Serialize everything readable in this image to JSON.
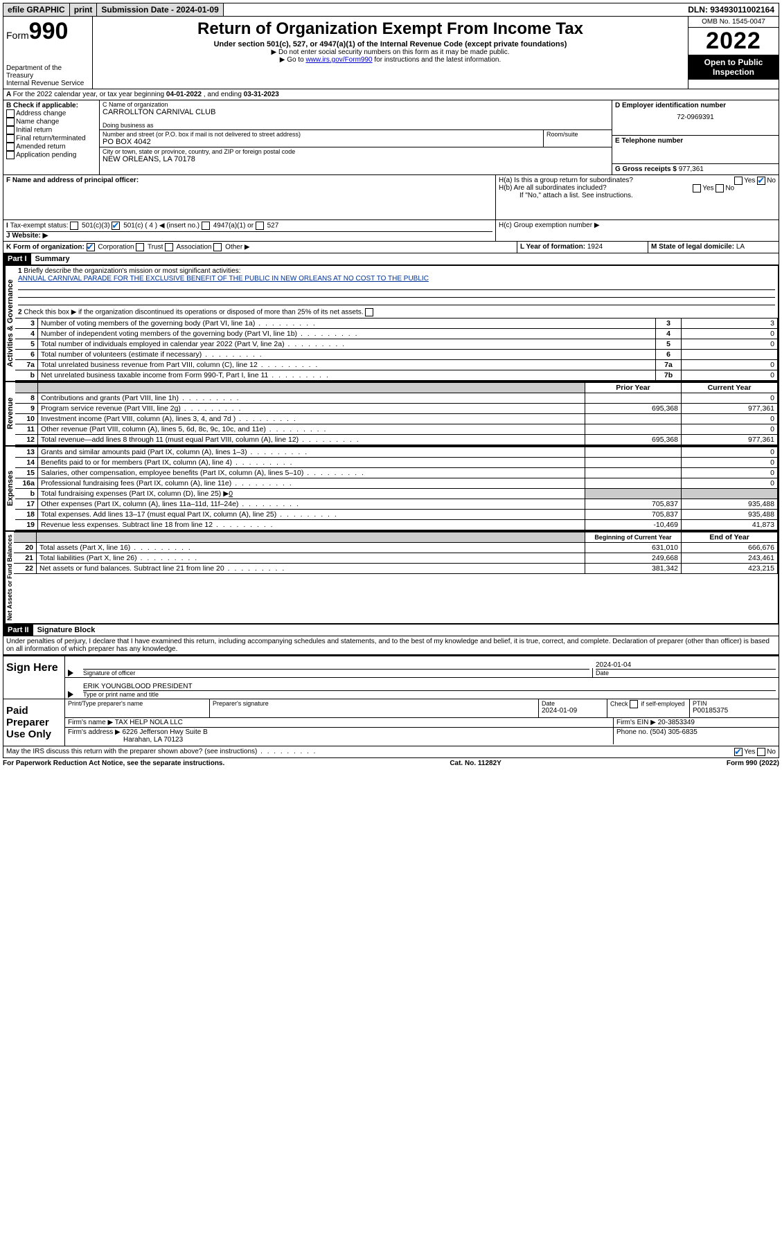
{
  "topbar": {
    "efile": "efile GRAPHIC",
    "print": "print",
    "sub_label": "Submission Date - 2024-01-09",
    "dln": "DLN: 93493011002164"
  },
  "header": {
    "form_prefix": "Form",
    "form_number": "990",
    "dept": "Department of the Treasury",
    "irs": "Internal Revenue Service",
    "title": "Return of Organization Exempt From Income Tax",
    "subtitle": "Under section 501(c), 527, or 4947(a)(1) of the Internal Revenue Code (except private foundations)",
    "note1": "▶ Do not enter social security numbers on this form as it may be made public.",
    "note2_a": "▶ Go to ",
    "note2_link": "www.irs.gov/Form990",
    "note2_b": " for instructions and the latest information.",
    "omb": "OMB No. 1545-0047",
    "year": "2022",
    "inspection": "Open to Public Inspection"
  },
  "periodA": {
    "text_a": "For the 2022 calendar year, or tax year beginning ",
    "begin": "04-01-2022",
    "text_b": " , and ending ",
    "end": "03-31-2023"
  },
  "sectionB": {
    "label": "B Check if applicable:",
    "items": [
      "Address change",
      "Name change",
      "Initial return",
      "Final return/terminated",
      "Amended return",
      "Application pending"
    ]
  },
  "sectionC": {
    "name_label": "C Name of organization",
    "name": "CARROLLTON CARNIVAL CLUB",
    "dba_label": "Doing business as",
    "street_label": "Number and street (or P.O. box if mail is not delivered to street address)",
    "room_label": "Room/suite",
    "street": "PO BOX 4042",
    "city_label": "City or town, state or province, country, and ZIP or foreign postal code",
    "city": "NEW ORLEANS, LA  70178"
  },
  "sectionD": {
    "label": "D Employer identification number",
    "ein": "72-0969391"
  },
  "sectionE": {
    "label": "E Telephone number",
    "val": ""
  },
  "sectionG": {
    "label": "G Gross receipts $",
    "val": "977,361"
  },
  "sectionF": {
    "label": "F  Name and address of principal officer:"
  },
  "sectionH": {
    "ha": "H(a)  Is this a group return for subordinates?",
    "hb": "H(b)  Are all subordinates included?",
    "hb_note": "If \"No,\" attach a list. See instructions.",
    "hc": "H(c)  Group exemption number ▶"
  },
  "sectionI": {
    "label": "Tax-exempt status:",
    "opt1": "501(c)(3)",
    "opt2": "501(c) ( 4 ) ◀ (insert no.)",
    "opt3": "4947(a)(1) or",
    "opt4": "527"
  },
  "sectionJ": {
    "label": "Website: ▶"
  },
  "sectionK": {
    "label": "K Form of organization:",
    "opts": [
      "Corporation",
      "Trust",
      "Association",
      "Other ▶"
    ]
  },
  "sectionL": {
    "label": "L Year of formation: ",
    "val": "1924"
  },
  "sectionM": {
    "label": "M State of legal domicile: ",
    "val": "LA"
  },
  "part1": {
    "header": "Part I",
    "title": "Summary",
    "line1_label": "Briefly describe the organization's mission or most significant activities:",
    "mission": "ANNUAL CARNIVAL PARADE FOR THE EXCLUSIVE BENEFIT OF THE PUBLIC IN NEW ORLEANS AT NO COST TO THE PUBLIC",
    "line2": "Check this box ▶      if the organization discontinued its operations or disposed of more than 25% of its net assets.",
    "lines_gov": [
      {
        "n": "3",
        "d": "Number of voting members of the governing body (Part VI, line 1a)",
        "box": "3",
        "v": "3"
      },
      {
        "n": "4",
        "d": "Number of independent voting members of the governing body (Part VI, line 1b)",
        "box": "4",
        "v": "0"
      },
      {
        "n": "5",
        "d": "Total number of individuals employed in calendar year 2022 (Part V, line 2a)",
        "box": "5",
        "v": "0"
      },
      {
        "n": "6",
        "d": "Total number of volunteers (estimate if necessary)",
        "box": "6",
        "v": ""
      },
      {
        "n": "7a",
        "d": "Total unrelated business revenue from Part VIII, column (C), line 12",
        "box": "7a",
        "v": "0"
      },
      {
        "n": "b",
        "d": "Net unrelated business taxable income from Form 990-T, Part I, line 11",
        "box": "7b",
        "v": "0"
      }
    ],
    "col_prior": "Prior Year",
    "col_curr": "Current Year",
    "lines_rev": [
      {
        "n": "8",
        "d": "Contributions and grants (Part VIII, line 1h)",
        "p": "",
        "c": "0"
      },
      {
        "n": "9",
        "d": "Program service revenue (Part VIII, line 2g)",
        "p": "695,368",
        "c": "977,361"
      },
      {
        "n": "10",
        "d": "Investment income (Part VIII, column (A), lines 3, 4, and 7d )",
        "p": "",
        "c": "0"
      },
      {
        "n": "11",
        "d": "Other revenue (Part VIII, column (A), lines 5, 6d, 8c, 9c, 10c, and 11e)",
        "p": "",
        "c": "0"
      },
      {
        "n": "12",
        "d": "Total revenue—add lines 8 through 11 (must equal Part VIII, column (A), line 12)",
        "p": "695,368",
        "c": "977,361"
      }
    ],
    "lines_exp": [
      {
        "n": "13",
        "d": "Grants and similar amounts paid (Part IX, column (A), lines 1–3)",
        "p": "",
        "c": "0"
      },
      {
        "n": "14",
        "d": "Benefits paid to or for members (Part IX, column (A), line 4)",
        "p": "",
        "c": "0"
      },
      {
        "n": "15",
        "d": "Salaries, other compensation, employee benefits (Part IX, column (A), lines 5–10)",
        "p": "",
        "c": "0"
      },
      {
        "n": "16a",
        "d": "Professional fundraising fees (Part IX, column (A), line 11e)",
        "p": "",
        "c": "0"
      }
    ],
    "line16b": "Total fundraising expenses (Part IX, column (D), line 25) ▶",
    "line16b_val": "0",
    "lines_exp2": [
      {
        "n": "17",
        "d": "Other expenses (Part IX, column (A), lines 11a–11d, 11f–24e)",
        "p": "705,837",
        "c": "935,488"
      },
      {
        "n": "18",
        "d": "Total expenses. Add lines 13–17 (must equal Part IX, column (A), line 25)",
        "p": "705,837",
        "c": "935,488"
      },
      {
        "n": "19",
        "d": "Revenue less expenses. Subtract line 18 from line 12",
        "p": "-10,469",
        "c": "41,873"
      }
    ],
    "col_begin": "Beginning of Current Year",
    "col_end": "End of Year",
    "lines_net": [
      {
        "n": "20",
        "d": "Total assets (Part X, line 16)",
        "p": "631,010",
        "c": "666,676"
      },
      {
        "n": "21",
        "d": "Total liabilities (Part X, line 26)",
        "p": "249,668",
        "c": "243,461"
      },
      {
        "n": "22",
        "d": "Net assets or fund balances. Subtract line 21 from line 20",
        "p": "381,342",
        "c": "423,215"
      }
    ]
  },
  "side_labels": {
    "gov": "Activities & Governance",
    "rev": "Revenue",
    "exp": "Expenses",
    "net": "Net Assets or Fund Balances"
  },
  "part2": {
    "header": "Part II",
    "title": "Signature Block",
    "penalties": "Under penalties of perjury, I declare that I have examined this return, including accompanying schedules and statements, and to the best of my knowledge and belief, it is true, correct, and complete. Declaration of preparer (other than officer) is based on all information of which preparer has any knowledge.",
    "sign_here": "Sign Here",
    "sig_officer": "Signature of officer",
    "sig_date_label": "Date",
    "sig_date": "2024-01-04",
    "officer_name": "ERIK YOUNGBLOOD  PRESIDENT",
    "officer_sub": "Type or print name and title",
    "paid": "Paid Preparer Use Only",
    "prep_name_label": "Print/Type preparer's name",
    "prep_sig_label": "Preparer's signature",
    "prep_date_label": "Date",
    "prep_date": "2024-01-09",
    "check_self": "Check        if self-employed",
    "ptin_label": "PTIN",
    "ptin": "P00185375",
    "firm_name_label": "Firm's name    ▶",
    "firm_name": "TAX HELP NOLA LLC",
    "firm_ein_label": "Firm's EIN ▶",
    "firm_ein": "20-3853349",
    "firm_addr_label": "Firm's address ▶",
    "firm_addr1": "6226 Jefferson Hwy Suite B",
    "firm_addr2": "Harahan, LA  70123",
    "phone_label": "Phone no.",
    "phone": "(504) 305-6835",
    "discuss": "May the IRS discuss this return with the preparer shown above? (see instructions)"
  },
  "footer": {
    "left": "For Paperwork Reduction Act Notice, see the separate instructions.",
    "mid": "Cat. No. 11282Y",
    "right": "Form 990 (2022)"
  }
}
